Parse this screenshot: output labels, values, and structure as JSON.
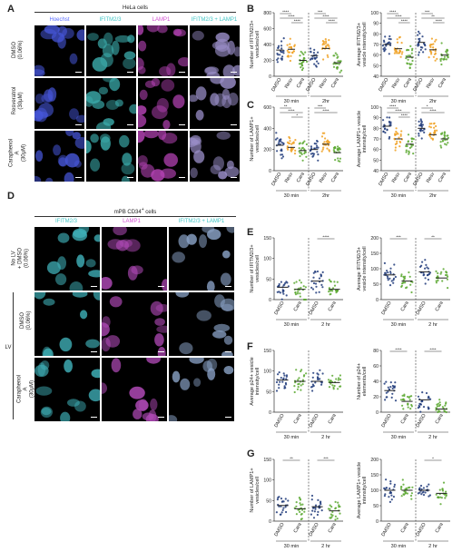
{
  "panel_letters": {
    "A": "A",
    "B": "B",
    "C": "C",
    "D": "D",
    "E": "E",
    "F": "F",
    "G": "G"
  },
  "panelA": {
    "title": "HeLa cells",
    "channels": [
      "Hoechst",
      "IFITM2/3",
      "LAMP1",
      "IFITM2/3 + LAMP1"
    ],
    "rows": [
      {
        "line1": "DMSO",
        "line2": "(0.06%)"
      },
      {
        "line1": "Resveratrol",
        "line2": "(30μM)"
      },
      {
        "line1": "Caraphenol A",
        "line2": "(30μM)"
      }
    ],
    "colors": {
      "Hoechst": "#5a6cff",
      "IFITM2/3": "#3fc4c4",
      "LAMP1": "#d14fd1",
      "merge": "#cfcfff"
    }
  },
  "panelD": {
    "title": "mPB CD34+ cells",
    "channels": [
      "IFITM2/3",
      "LAMP1",
      "IFITM2/3 + LAMP1"
    ],
    "rows": [
      {
        "line1": "No LV",
        "line2": "+ DMSO (0.06%)"
      },
      {
        "line1": "DMSO",
        "line2": "(0.06%)"
      },
      {
        "line1": "Caraphenol A",
        "line2": "(30μM)"
      }
    ],
    "group_label": "LV"
  },
  "colors": {
    "dmso": "#1e3a7a",
    "resv": "#f0a020",
    "cara": "#5aa830",
    "median": "#222222"
  },
  "chart_data": [
    {
      "id": "B1",
      "type": "scatter",
      "ylabel": "Number of IFITM2/3+ vesicles/cell",
      "ylim": [
        0,
        800
      ],
      "yticks": [
        0,
        200,
        400,
        600,
        800
      ],
      "categories": [
        "DMSO",
        "Resv",
        "Cara",
        "DMSO",
        "Resv",
        "Cara"
      ],
      "groups": [
        "30 min",
        "2hr"
      ],
      "medians": [
        330,
        340,
        200,
        260,
        350,
        170
      ],
      "sig": [
        "****",
        "****",
        "****",
        "***",
        "****",
        "****"
      ]
    },
    {
      "id": "B2",
      "type": "scatter",
      "ylabel": "Average IFITM2/3+ vesicle intensity/cell",
      "ylim": [
        40,
        100
      ],
      "yticks": [
        40,
        50,
        60,
        70,
        80,
        90,
        100
      ],
      "categories": [
        "DMSO",
        "Resv",
        "Cara",
        "DMSO",
        "Resv",
        "Cara"
      ],
      "groups": [
        "30 min",
        "2hr"
      ],
      "medians": [
        70,
        66,
        58,
        72,
        65,
        60
      ],
      "sig": [
        "****",
        "****",
        "****",
        "***",
        "**",
        "****"
      ]
    },
    {
      "id": "C1",
      "type": "scatter",
      "ylabel": "Number of LAMP1+ vesicles/cell",
      "ylim": [
        0,
        600
      ],
      "yticks": [
        0,
        200,
        400,
        600
      ],
      "categories": [
        "DMSO",
        "Resv",
        "Cara",
        "DMSO",
        "Resv",
        "Cara"
      ],
      "groups": [
        "30 min",
        "2hr"
      ],
      "medians": [
        240,
        220,
        190,
        200,
        250,
        170
      ],
      "sig": [
        "**",
        "****",
        "*",
        "***",
        "****"
      ]
    },
    {
      "id": "C2",
      "type": "scatter",
      "ylabel": "Average LAMP1+ vesicle intensity/cell",
      "ylim": [
        40,
        100
      ],
      "yticks": [
        40,
        50,
        60,
        70,
        80,
        90,
        100
      ],
      "categories": [
        "DMSO",
        "Resv",
        "Cara",
        "DMSO",
        "Resv",
        "Cara"
      ],
      "groups": [
        "30 min",
        "2hr"
      ],
      "medians": [
        82,
        70,
        65,
        80,
        74,
        70
      ],
      "sig": [
        "****",
        "****",
        "****",
        "*",
        "****"
      ]
    },
    {
      "id": "E1",
      "type": "scatter",
      "ylabel": "Number of IFITM2/3+ vesicles/cell",
      "ylim": [
        0,
        150
      ],
      "yticks": [
        0,
        50,
        100,
        150
      ],
      "categories": [
        "DMSO",
        "Cara",
        "DMSO",
        "Cara"
      ],
      "groups": [
        "30 min",
        "2 hr"
      ],
      "medians": [
        30,
        25,
        45,
        25
      ],
      "sig": [
        "****"
      ]
    },
    {
      "id": "E2",
      "type": "scatter",
      "ylabel": "Average IFITM2/3+ vesicle intensity/cell",
      "ylim": [
        0,
        200
      ],
      "yticks": [
        0,
        50,
        100,
        150,
        200
      ],
      "categories": [
        "DMSO",
        "Cara",
        "DMSO",
        "Cara"
      ],
      "groups": [
        "30 min",
        "2 hr"
      ],
      "medians": [
        80,
        60,
        90,
        70
      ],
      "sig": [
        "***",
        "**"
      ]
    },
    {
      "id": "F1",
      "type": "scatter",
      "ylabel": "Average p24+ vesicle intensity/cell",
      "ylim": [
        0,
        150
      ],
      "yticks": [
        0,
        50,
        100,
        150
      ],
      "categories": [
        "DMSO",
        "Cara",
        "DMSO",
        "Cara"
      ],
      "groups": [
        "30 min",
        "2 hr"
      ],
      "medians": [
        78,
        75,
        75,
        72
      ],
      "sig": []
    },
    {
      "id": "F2",
      "type": "scatter",
      "ylabel": "Number of p24+ elements/cell",
      "ylim": [
        0,
        80
      ],
      "yticks": [
        0,
        20,
        40,
        60,
        80
      ],
      "categories": [
        "DMSO",
        "Cara",
        "DMSO",
        "Cara"
      ],
      "groups": [
        "30 min",
        "2 hr"
      ],
      "medians": [
        28,
        14,
        16,
        4
      ],
      "sig": [
        "****",
        "****"
      ]
    },
    {
      "id": "G1",
      "type": "scatter",
      "ylabel": "Number of LAMP1+ vesicles/cell",
      "ylim": [
        0,
        150
      ],
      "yticks": [
        0,
        50,
        100,
        150
      ],
      "categories": [
        "DMSO",
        "Cara",
        "DMSO",
        "Cara"
      ],
      "groups": [
        "30 min",
        "2 hr"
      ],
      "medians": [
        38,
        30,
        35,
        25
      ],
      "sig": [
        "**",
        "***"
      ]
    },
    {
      "id": "G2",
      "type": "scatter",
      "ylabel": "Average LAMP1+ vesicle intensity/cell",
      "ylim": [
        0,
        200
      ],
      "yticks": [
        0,
        50,
        100,
        150,
        200
      ],
      "categories": [
        "DMSO",
        "Cara",
        "DMSO",
        "Cara"
      ],
      "groups": [
        "30 min",
        "2 hr"
      ],
      "medians": [
        100,
        100,
        100,
        90
      ],
      "sig": [
        "*"
      ]
    }
  ]
}
